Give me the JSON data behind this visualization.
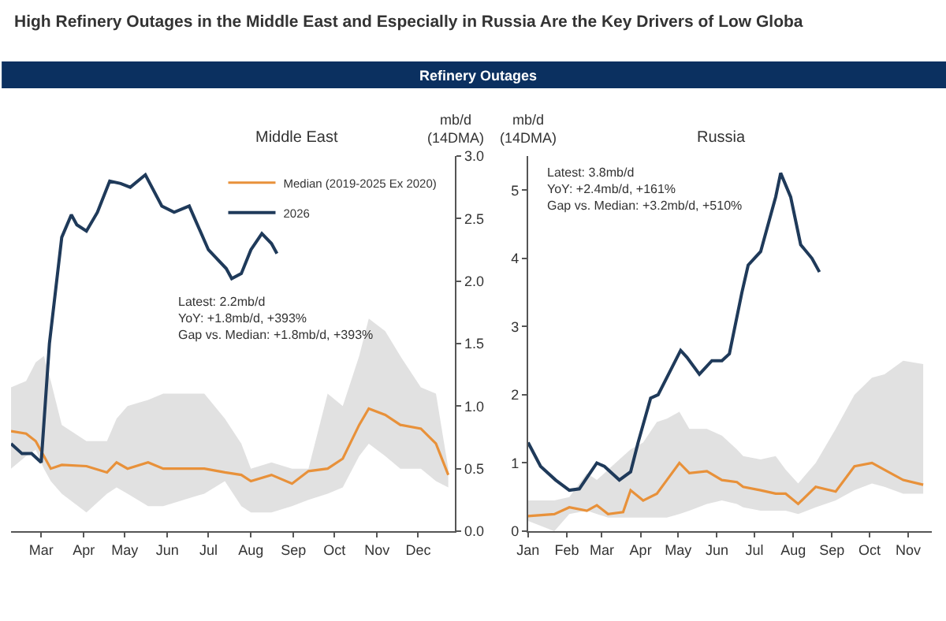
{
  "chart_data": [
    {
      "type": "other",
      "title": "High Refinery Outages in the Middle East and Especially in Russia Are the Key Drivers of Low Globa",
      "subtitle": "Refinery Outages"
    },
    {
      "type": "line",
      "title": "Middle East",
      "ylabel": "mb/d\n(14DMA)",
      "legend": "top right",
      "marker": "none",
      "line_style": "solid",
      "xlim": [
        "--02-07",
        "--12-28"
      ],
      "xticks": [
        {
          "value": "--03-01",
          "label": "Mar"
        },
        {
          "value": "--04-01",
          "label": "Apr"
        },
        {
          "value": "--05-01",
          "label": "May"
        },
        {
          "value": "--06-01",
          "label": "Jun"
        },
        {
          "value": "--07-01",
          "label": "Jul"
        },
        {
          "value": "--08-01",
          "label": "Aug"
        },
        {
          "value": "--09-01",
          "label": "Sep"
        },
        {
          "value": "--10-01",
          "label": "Oct"
        },
        {
          "value": "--11-01",
          "label": "Nov"
        },
        {
          "value": "--12-01",
          "label": "Dec"
        }
      ],
      "ylim": [
        0,
        3
      ],
      "yticks": [
        {
          "value": 0,
          "label": "0.0"
        },
        {
          "value": 0.5,
          "label": "0.5"
        },
        {
          "value": 1,
          "label": "1.0"
        },
        {
          "value": 1.5,
          "label": "1.5"
        },
        {
          "value": 2,
          "label": "2.0"
        },
        {
          "value": 2.5,
          "label": "2.5"
        },
        {
          "value": 3,
          "label": "3.0"
        }
      ],
      "annotations": [
        "Latest: 2.2mb/d\nYoY: +1.8mb/d, +393%\nGap vs. Median: +1.8mb/d, +393%"
      ],
      "series": [
        {
          "name": "Median (2019-2025 Ex 2020)",
          "color": "#e8913a",
          "x": [
            "--02-07",
            "--02-18",
            "--02-25",
            "--03-03",
            "--03-08",
            "--03-16",
            "--04-03",
            "--04-18",
            "--04-25",
            "--05-03",
            "--05-18",
            "--05-29",
            "--06-28",
            "--07-13",
            "--07-25",
            "--08-01",
            "--08-16",
            "--08-31",
            "--09-12",
            "--09-26",
            "--10-07",
            "--10-19",
            "--10-26",
            "--11-07",
            "--11-18",
            "--12-03",
            "--12-14",
            "--12-23"
          ],
          "values": [
            0.8,
            0.78,
            0.72,
            0.6,
            0.5,
            0.53,
            0.52,
            0.47,
            0.55,
            0.5,
            0.55,
            0.5,
            0.5,
            0.47,
            0.45,
            0.4,
            0.45,
            0.38,
            0.48,
            0.5,
            0.58,
            0.85,
            0.98,
            0.93,
            0.85,
            0.82,
            0.7,
            0.45
          ],
          "lower": [
            0.5,
            0.6,
            0.65,
            0.5,
            0.4,
            0.3,
            0.15,
            0.3,
            0.35,
            0.3,
            0.2,
            0.2,
            0.3,
            0.4,
            0.2,
            0.15,
            0.15,
            0.2,
            0.25,
            0.3,
            0.35,
            0.6,
            0.7,
            0.6,
            0.5,
            0.5,
            0.4,
            0.35
          ],
          "upper": [
            1.15,
            1.2,
            1.35,
            1.4,
            1.2,
            0.85,
            0.72,
            0.72,
            0.9,
            1.0,
            1.05,
            1.1,
            1.1,
            0.9,
            0.7,
            0.5,
            0.55,
            0.5,
            0.5,
            1.1,
            1.0,
            1.4,
            1.7,
            1.6,
            1.4,
            1.15,
            1.1,
            0.5
          ]
        },
        {
          "name": "2026",
          "color": "#1f3a5a",
          "x": [
            "--02-07",
            "--02-15",
            "--02-22",
            "--03-01",
            "--03-07",
            "--03-16",
            "--03-23",
            "--03-27",
            "--04-03",
            "--04-11",
            "--04-20",
            "--04-28",
            "--05-05",
            "--05-16",
            "--05-28",
            "--06-06",
            "--06-17",
            "--06-21",
            "--07-01",
            "--07-14",
            "--07-18",
            "--07-25",
            "--08-01",
            "--08-09",
            "--08-16",
            "--08-20"
          ],
          "values": [
            0.7,
            0.62,
            0.62,
            0.55,
            1.5,
            2.35,
            2.53,
            2.45,
            2.4,
            2.55,
            2.8,
            2.78,
            2.75,
            2.85,
            2.6,
            2.55,
            2.6,
            2.5,
            2.25,
            2.1,
            2.02,
            2.06,
            2.25,
            2.38,
            2.3,
            2.22
          ]
        }
      ]
    },
    {
      "type": "line",
      "title": "Russia",
      "ylabel": "mb/d\n(14DMA)",
      "marker": "none",
      "line_style": "solid",
      "xlim": [
        "--01-01",
        "--11-20"
      ],
      "xticks": [
        {
          "value": "--01-01",
          "label": "Jan"
        },
        {
          "value": "--02-01",
          "label": "Feb"
        },
        {
          "value": "--03-01",
          "label": "Mar"
        },
        {
          "value": "--04-01",
          "label": "Apr"
        },
        {
          "value": "--05-01",
          "label": "May"
        },
        {
          "value": "--06-01",
          "label": "Jun"
        },
        {
          "value": "--07-01",
          "label": "Jul"
        },
        {
          "value": "--08-01",
          "label": "Aug"
        },
        {
          "value": "--09-01",
          "label": "Sep"
        },
        {
          "value": "--10-01",
          "label": "Oct"
        },
        {
          "value": "--11-01",
          "label": "Nov"
        }
      ],
      "ylim": [
        0,
        5.5
      ],
      "yticks": [
        0,
        1,
        2,
        3,
        4,
        5
      ],
      "annotations": [
        "Latest: 3.8mb/d\nYoY: +2.4mb/d, +161%\nGap vs. Median: +3.2mb/d, +510%"
      ],
      "series": [
        {
          "color": "#e8913a",
          "x": [
            "--01-01",
            "--01-22",
            "--02-03",
            "--02-17",
            "--02-25",
            "--03-06",
            "--03-18",
            "--03-24",
            "--04-03",
            "--04-14",
            "--04-22",
            "--05-02",
            "--05-10",
            "--05-24",
            "--06-05",
            "--06-17",
            "--06-22",
            "--07-06",
            "--07-18",
            "--07-26",
            "--08-05",
            "--08-19",
            "--09-04",
            "--09-19",
            "--10-03",
            "--10-13",
            "--10-28",
            "--11-13"
          ],
          "values": [
            0.22,
            0.25,
            0.35,
            0.3,
            0.38,
            0.25,
            0.28,
            0.6,
            0.45,
            0.55,
            0.75,
            1.0,
            0.85,
            0.88,
            0.75,
            0.72,
            0.65,
            0.6,
            0.55,
            0.55,
            0.4,
            0.65,
            0.58,
            0.95,
            1.0,
            0.9,
            0.75,
            0.68
          ],
          "lower": [
            0.15,
            0,
            0.25,
            0.3,
            0.25,
            0.2,
            0.2,
            0.2,
            0.2,
            0.2,
            0.2,
            0.25,
            0.3,
            0.4,
            0.45,
            0.4,
            0.35,
            0.3,
            0.3,
            0.3,
            0.25,
            0.35,
            0.45,
            0.6,
            0.7,
            0.65,
            0.55,
            0.55
          ],
          "upper": [
            0.45,
            0.45,
            0.5,
            0.85,
            0.75,
            0.9,
            1.1,
            1.2,
            1.3,
            1.6,
            1.65,
            1.75,
            1.5,
            1.5,
            1.4,
            1.2,
            1.1,
            1.05,
            1.1,
            0.9,
            0.7,
            1.0,
            1.5,
            2.0,
            2.25,
            2.3,
            2.5,
            2.45
          ]
        },
        {
          "color": "#1f3a5a",
          "x": [
            "--01-01",
            "--01-11",
            "--01-23",
            "--02-03",
            "--02-11",
            "--02-25",
            "--03-03",
            "--03-15",
            "--03-24",
            "--03-30",
            "--04-09",
            "--04-15",
            "--05-03",
            "--05-08",
            "--05-18",
            "--05-28",
            "--06-05",
            "--06-11",
            "--06-21",
            "--06-26",
            "--07-06",
            "--07-18",
            "--07-22",
            "--07-30",
            "--08-07",
            "--08-16",
            "--08-22"
          ],
          "values": [
            1.3,
            0.95,
            0.75,
            0.6,
            0.62,
            1.0,
            0.95,
            0.75,
            0.87,
            1.3,
            1.95,
            2.0,
            2.65,
            2.55,
            2.3,
            2.5,
            2.5,
            2.6,
            3.5,
            3.9,
            4.1,
            4.9,
            5.25,
            4.9,
            4.2,
            4.0,
            3.8
          ]
        }
      ]
    }
  ]
}
